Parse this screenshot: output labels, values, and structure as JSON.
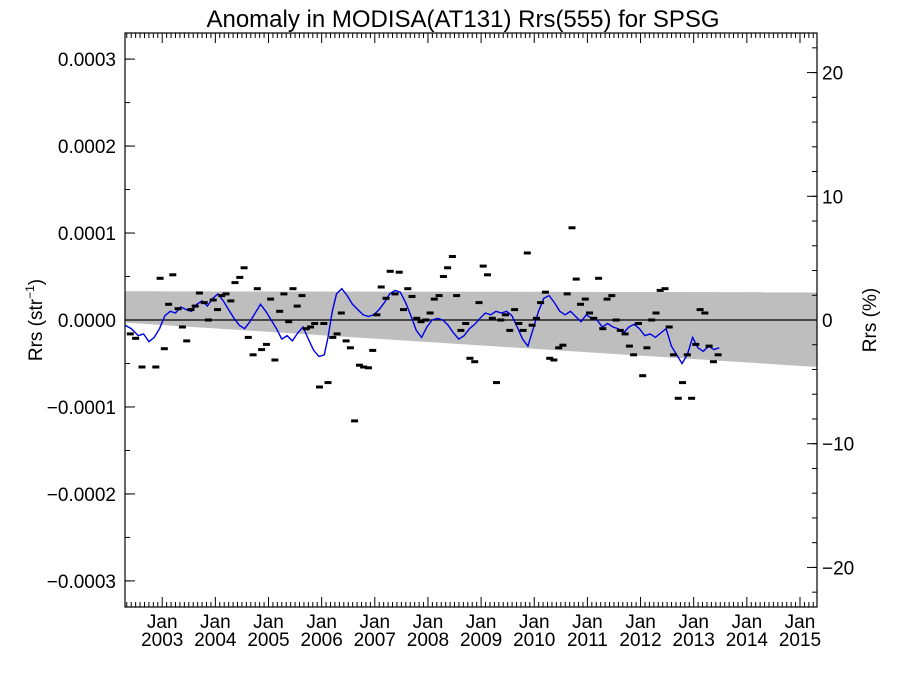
{
  "chart_data": {
    "type": "line",
    "title": "Anomaly in MODISA(AT131) Rrs(555) for SPSG",
    "ylabel_left_main": "Rrs (str",
    "ylabel_left_sup": "−1",
    "ylabel_left_close": ")",
    "ylabel_right": "Rrs (%)",
    "xlim": [
      2002.3,
      2015.32
    ],
    "ylim_left": [
      -0.00033,
      0.00033
    ],
    "ylim_right": [
      -23.2,
      23.2
    ],
    "grid": false,
    "legend": "none",
    "colors": {
      "line": "#0000e6",
      "band": "#bebebe",
      "points": "#000000",
      "zero": "#000000"
    },
    "x_ticks_major": [
      {
        "x": 2003.0,
        "month": "Jan",
        "year": "2003"
      },
      {
        "x": 2004.0,
        "month": "Jan",
        "year": "2004"
      },
      {
        "x": 2005.0,
        "month": "Jan",
        "year": "2005"
      },
      {
        "x": 2006.0,
        "month": "Jan",
        "year": "2006"
      },
      {
        "x": 2007.0,
        "month": "Jan",
        "year": "2007"
      },
      {
        "x": 2008.0,
        "month": "Jan",
        "year": "2008"
      },
      {
        "x": 2009.0,
        "month": "Jan",
        "year": "2009"
      },
      {
        "x": 2010.0,
        "month": "Jan",
        "year": "2010"
      },
      {
        "x": 2011.0,
        "month": "Jan",
        "year": "2011"
      },
      {
        "x": 2012.0,
        "month": "Jan",
        "year": "2012"
      },
      {
        "x": 2013.0,
        "month": "Jan",
        "year": "2013"
      },
      {
        "x": 2014.0,
        "month": "Jan",
        "year": "2014"
      },
      {
        "x": 2015.0,
        "month": "Jan",
        "year": "2015"
      }
    ],
    "y_ticks_left": [
      {
        "v": 0.0003,
        "label": "0.0003"
      },
      {
        "v": 0.0002,
        "label": "0.0002"
      },
      {
        "v": 0.0001,
        "label": "0.0001"
      },
      {
        "v": 0.0,
        "label": "0.0000"
      },
      {
        "v": -0.0001,
        "label": "−0.0001"
      },
      {
        "v": -0.0002,
        "label": "−0.0002"
      },
      {
        "v": -0.0003,
        "label": "−0.0003"
      }
    ],
    "y_ticks_right": [
      {
        "v": 20,
        "label": "20"
      },
      {
        "v": 10,
        "label": "10"
      },
      {
        "v": 0,
        "label": "0"
      },
      {
        "v": -10,
        "label": "−10"
      },
      {
        "v": -20,
        "label": "−20"
      }
    ],
    "band": {
      "upper": [
        [
          2002.3,
          3.3e-05
        ],
        [
          2015.32,
          3.2e-05
        ]
      ],
      "lower": [
        [
          2002.3,
          -3e-06
        ],
        [
          2015.32,
          -5.4e-05
        ]
      ]
    },
    "points": [
      [
        2002.4,
        -1.6e-05
      ],
      [
        2002.5,
        -2.1e-05
      ],
      [
        2002.62,
        -5.4e-05
      ],
      [
        2002.88,
        -5.4e-05
      ],
      [
        2002.96,
        4.8e-05
      ],
      [
        2003.04,
        -3.3e-05
      ],
      [
        2003.12,
        1.8e-05
      ],
      [
        2003.2,
        5.2e-05
      ],
      [
        2003.3,
        1.3e-05
      ],
      [
        2003.38,
        -8e-06
      ],
      [
        2003.46,
        -2.4e-05
      ],
      [
        2003.54,
        1.2e-05
      ],
      [
        2003.62,
        1.6e-05
      ],
      [
        2003.7,
        3.1e-05
      ],
      [
        2003.79,
        2e-05
      ],
      [
        2003.87,
        0.0
      ],
      [
        2003.96,
        2.3e-05
      ],
      [
        2004.04,
        1.2e-05
      ],
      [
        2004.12,
        2.8e-05
      ],
      [
        2004.2,
        3e-05
      ],
      [
        2004.29,
        2.2e-05
      ],
      [
        2004.37,
        4.3e-05
      ],
      [
        2004.46,
        4.9e-05
      ],
      [
        2004.54,
        6e-05
      ],
      [
        2004.62,
        -2e-05
      ],
      [
        2004.71,
        -4e-05
      ],
      [
        2004.79,
        3.6e-05
      ],
      [
        2004.87,
        -3.4e-05
      ],
      [
        2004.96,
        -2.8e-05
      ],
      [
        2005.04,
        2.4e-05
      ],
      [
        2005.12,
        -4.6e-05
      ],
      [
        2005.21,
        1e-05
      ],
      [
        2005.29,
        3e-05
      ],
      [
        2005.38,
        -2e-06
      ],
      [
        2005.46,
        3.6e-05
      ],
      [
        2005.54,
        1.6e-05
      ],
      [
        2005.63,
        2.8e-05
      ],
      [
        2005.71,
        -1e-05
      ],
      [
        2005.79,
        -8e-06
      ],
      [
        2005.87,
        -4e-06
      ],
      [
        2005.96,
        -7.7e-05
      ],
      [
        2006.04,
        -4e-06
      ],
      [
        2006.12,
        -7.2e-05
      ],
      [
        2006.21,
        -2e-05
      ],
      [
        2006.29,
        -1.6e-05
      ],
      [
        2006.37,
        8e-06
      ],
      [
        2006.46,
        -2.4e-05
      ],
      [
        2006.54,
        -3.2e-05
      ],
      [
        2006.62,
        -0.000116
      ],
      [
        2006.71,
        -5.2e-05
      ],
      [
        2006.79,
        -5.4e-05
      ],
      [
        2006.88,
        -5.5e-05
      ],
      [
        2006.96,
        -3.5e-05
      ],
      [
        2007.04,
        6e-06
      ],
      [
        2007.12,
        3.8e-05
      ],
      [
        2007.21,
        2.5e-05
      ],
      [
        2007.29,
        5.6e-05
      ],
      [
        2007.38,
        3e-05
      ],
      [
        2007.46,
        5.5e-05
      ],
      [
        2007.54,
        1.2e-05
      ],
      [
        2007.62,
        3.6e-05
      ],
      [
        2007.7,
        2.7e-05
      ],
      [
        2007.79,
        2e-06
      ],
      [
        2007.87,
        -2e-06
      ],
      [
        2007.96,
        0.0
      ],
      [
        2008.04,
        8e-06
      ],
      [
        2008.12,
        2.4e-05
      ],
      [
        2008.21,
        2.8e-05
      ],
      [
        2008.29,
        5e-05
      ],
      [
        2008.37,
        6e-05
      ],
      [
        2008.46,
        7.3e-05
      ],
      [
        2008.54,
        2.8e-05
      ],
      [
        2008.62,
        -1.2e-05
      ],
      [
        2008.71,
        -4e-06
      ],
      [
        2008.79,
        -4.4e-05
      ],
      [
        2008.88,
        -4.8e-05
      ],
      [
        2008.96,
        2e-05
      ],
      [
        2009.04,
        6.2e-05
      ],
      [
        2009.12,
        5.2e-05
      ],
      [
        2009.21,
        2e-06
      ],
      [
        2009.29,
        -7.2e-05
      ],
      [
        2009.37,
        0.0
      ],
      [
        2009.46,
        6e-06
      ],
      [
        2009.54,
        -1.2e-05
      ],
      [
        2009.63,
        1.2e-05
      ],
      [
        2009.71,
        -4e-06
      ],
      [
        2009.79,
        -1.2e-05
      ],
      [
        2009.87,
        7.7e-05
      ],
      [
        2009.96,
        -6e-06
      ],
      [
        2010.04,
        2e-06
      ],
      [
        2010.12,
        2e-05
      ],
      [
        2010.21,
        3.2e-05
      ],
      [
        2010.29,
        -4.4e-05
      ],
      [
        2010.37,
        -4.6e-05
      ],
      [
        2010.46,
        -3.2e-05
      ],
      [
        2010.54,
        -2.9e-05
      ],
      [
        2010.62,
        3e-05
      ],
      [
        2010.71,
        0.000106
      ],
      [
        2010.79,
        4.7e-05
      ],
      [
        2010.87,
        1.8e-05
      ],
      [
        2010.96,
        2.4e-05
      ],
      [
        2011.04,
        8e-06
      ],
      [
        2011.12,
        2e-06
      ],
      [
        2011.21,
        4.8e-05
      ],
      [
        2011.29,
        -1e-05
      ],
      [
        2011.37,
        2.4e-05
      ],
      [
        2011.46,
        2.8e-05
      ],
      [
        2011.54,
        0.0
      ],
      [
        2011.62,
        -1.2e-05
      ],
      [
        2011.71,
        -1.6e-05
      ],
      [
        2011.79,
        -3e-05
      ],
      [
        2011.87,
        -4e-05
      ],
      [
        2011.96,
        -4e-06
      ],
      [
        2012.04,
        -6.4e-05
      ],
      [
        2012.12,
        -3.2e-05
      ],
      [
        2012.21,
        0.0
      ],
      [
        2012.29,
        8e-06
      ],
      [
        2012.37,
        3.4e-05
      ],
      [
        2012.46,
        3.6e-05
      ],
      [
        2012.54,
        -8e-06
      ],
      [
        2012.62,
        -4e-05
      ],
      [
        2012.71,
        -9e-05
      ],
      [
        2012.79,
        -7.2e-05
      ],
      [
        2012.88,
        -4e-05
      ],
      [
        2012.96,
        -9e-05
      ],
      [
        2013.04,
        -2.8e-05
      ],
      [
        2013.12,
        1.2e-05
      ],
      [
        2013.21,
        8e-06
      ],
      [
        2013.29,
        -3e-05
      ],
      [
        2013.37,
        -4.8e-05
      ],
      [
        2013.46,
        -4e-05
      ]
    ],
    "line": [
      [
        2002.3,
        -6e-06
      ],
      [
        2002.42,
        -1e-05
      ],
      [
        2002.55,
        -1.8e-05
      ],
      [
        2002.65,
        -1.6e-05
      ],
      [
        2002.75,
        -2.5e-05
      ],
      [
        2002.85,
        -2e-05
      ],
      [
        2002.95,
        -1e-05
      ],
      [
        2003.05,
        5e-06
      ],
      [
        2003.15,
        1e-05
      ],
      [
        2003.25,
        8e-06
      ],
      [
        2003.35,
        1.5e-05
      ],
      [
        2003.45,
        1.2e-05
      ],
      [
        2003.55,
        1e-05
      ],
      [
        2003.65,
        1.8e-05
      ],
      [
        2003.75,
        2.2e-05
      ],
      [
        2003.85,
        1.6e-05
      ],
      [
        2003.95,
        2.5e-05
      ],
      [
        2004.05,
        3e-05
      ],
      [
        2004.15,
        2.2e-05
      ],
      [
        2004.25,
        1.2e-05
      ],
      [
        2004.35,
        2e-06
      ],
      [
        2004.45,
        -6e-06
      ],
      [
        2004.55,
        -1e-05
      ],
      [
        2004.65,
        -2e-06
      ],
      [
        2004.75,
        8e-06
      ],
      [
        2004.85,
        1.8e-05
      ],
      [
        2004.95,
        1e-05
      ],
      [
        2005.05,
        0.0
      ],
      [
        2005.15,
        -1e-05
      ],
      [
        2005.25,
        -2.2e-05
      ],
      [
        2005.35,
        -1.8e-05
      ],
      [
        2005.45,
        -2.4e-05
      ],
      [
        2005.55,
        -1.5e-05
      ],
      [
        2005.65,
        -8e-06
      ],
      [
        2005.75,
        -2.2e-05
      ],
      [
        2005.85,
        -3.5e-05
      ],
      [
        2005.95,
        -4.2e-05
      ],
      [
        2006.05,
        -4e-05
      ],
      [
        2006.12,
        -2e-05
      ],
      [
        2006.2,
        1e-05
      ],
      [
        2006.28,
        3e-05
      ],
      [
        2006.38,
        3.6e-05
      ],
      [
        2006.48,
        2.8e-05
      ],
      [
        2006.58,
        1.8e-05
      ],
      [
        2006.68,
        1.2e-05
      ],
      [
        2006.78,
        6e-06
      ],
      [
        2006.88,
        4e-06
      ],
      [
        2006.98,
        6e-06
      ],
      [
        2007.08,
        1.2e-05
      ],
      [
        2007.18,
        2e-05
      ],
      [
        2007.28,
        3e-05
      ],
      [
        2007.38,
        3.4e-05
      ],
      [
        2007.48,
        3.2e-05
      ],
      [
        2007.58,
        2e-05
      ],
      [
        2007.68,
        5e-06
      ],
      [
        2007.78,
        -1.2e-05
      ],
      [
        2007.88,
        -2e-05
      ],
      [
        2007.98,
        -8e-06
      ],
      [
        2008.08,
        0.0
      ],
      [
        2008.18,
        2e-06
      ],
      [
        2008.28,
        0.0
      ],
      [
        2008.38,
        -6e-06
      ],
      [
        2008.48,
        -1.5e-05
      ],
      [
        2008.58,
        -2.2e-05
      ],
      [
        2008.68,
        -1.8e-05
      ],
      [
        2008.78,
        -1e-05
      ],
      [
        2008.88,
        -5e-06
      ],
      [
        2008.98,
        2e-06
      ],
      [
        2009.08,
        8e-06
      ],
      [
        2009.18,
        6e-06
      ],
      [
        2009.28,
        1e-05
      ],
      [
        2009.38,
        8e-06
      ],
      [
        2009.48,
        1e-05
      ],
      [
        2009.58,
        5e-06
      ],
      [
        2009.68,
        -8e-06
      ],
      [
        2009.78,
        -2.2e-05
      ],
      [
        2009.88,
        -3e-05
      ],
      [
        2009.98,
        -1e-05
      ],
      [
        2010.08,
        1e-05
      ],
      [
        2010.18,
        2.5e-05
      ],
      [
        2010.28,
        2.8e-05
      ],
      [
        2010.38,
        2e-05
      ],
      [
        2010.48,
        1e-05
      ],
      [
        2010.58,
        6e-06
      ],
      [
        2010.68,
        1e-05
      ],
      [
        2010.78,
        4e-06
      ],
      [
        2010.88,
        -2e-06
      ],
      [
        2010.98,
        6e-06
      ],
      [
        2011.08,
        2e-06
      ],
      [
        2011.18,
        0.0
      ],
      [
        2011.28,
        -8e-06
      ],
      [
        2011.38,
        -4e-06
      ],
      [
        2011.48,
        -8e-06
      ],
      [
        2011.58,
        -1e-05
      ],
      [
        2011.68,
        -1.5e-05
      ],
      [
        2011.78,
        -8e-06
      ],
      [
        2011.88,
        -5e-06
      ],
      [
        2011.98,
        -1e-05
      ],
      [
        2012.08,
        -1.8e-05
      ],
      [
        2012.18,
        -1.6e-05
      ],
      [
        2012.28,
        -2e-05
      ],
      [
        2012.38,
        -1.5e-05
      ],
      [
        2012.48,
        -1e-05
      ],
      [
        2012.58,
        -3e-05
      ],
      [
        2012.68,
        -4e-05
      ],
      [
        2012.78,
        -5e-05
      ],
      [
        2012.88,
        -4e-05
      ],
      [
        2012.98,
        -2e-05
      ],
      [
        2013.08,
        -3.2e-05
      ],
      [
        2013.18,
        -3.6e-05
      ],
      [
        2013.28,
        -3e-05
      ],
      [
        2013.38,
        -3.4e-05
      ],
      [
        2013.48,
        -3.2e-05
      ]
    ]
  }
}
